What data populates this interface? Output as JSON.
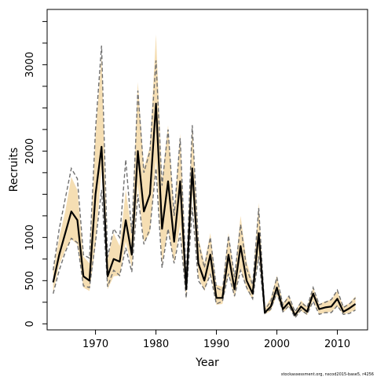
{
  "chart_data": {
    "type": "line",
    "title": "",
    "xlabel": "Year",
    "ylabel": "Recruits",
    "xlim": [
      1962,
      2015
    ],
    "ylim": [
      -70,
      3640
    ],
    "x_ticks": [
      1970,
      1980,
      1990,
      2000,
      2010
    ],
    "x_tick_labels": [
      "1970",
      "1980",
      "1990",
      "2000",
      "2010"
    ],
    "y_ticks": [
      0,
      500,
      1000,
      2000,
      3000
    ],
    "y_tick_labels": [
      "0",
      "500",
      "1000",
      "2000",
      "3000"
    ],
    "y_minor_ticks": [
      250,
      750,
      1250,
      1500,
      1750,
      2250,
      2500,
      2750,
      3250,
      3500
    ],
    "grid": false,
    "legend": "none",
    "footer": "stockassessment.org, nscod2015-base5, r4256",
    "colors": {
      "estimate": "#000000",
      "band": "#f5deb3",
      "bounds": "#707070"
    },
    "x": [
      1963,
      1964,
      1965,
      1966,
      1967,
      1968,
      1969,
      1970,
      1971,
      1972,
      1973,
      1974,
      1975,
      1976,
      1977,
      1978,
      1979,
      1980,
      1981,
      1982,
      1983,
      1984,
      1985,
      1986,
      1987,
      1988,
      1989,
      1990,
      1991,
      1992,
      1993,
      1994,
      1995,
      1996,
      1997,
      1998,
      1999,
      2000,
      2001,
      2002,
      2003,
      2004,
      2005,
      2006,
      2007,
      2008,
      2009,
      2010,
      2011,
      2012,
      2013
    ],
    "series": [
      {
        "values": [
          480,
          800,
          1050,
          1300,
          1200,
          550,
          500,
          1500,
          2050,
          550,
          750,
          720,
          1200,
          800,
          2000,
          1300,
          1500,
          2550,
          1100,
          1650,
          950,
          1650,
          400,
          1800,
          700,
          500,
          800,
          300,
          300,
          800,
          400,
          900,
          500,
          350,
          1050,
          130,
          200,
          420,
          170,
          250,
          100,
          200,
          140,
          350,
          170,
          190,
          200,
          290,
          140,
          180,
          230
        ]
      },
      {
        "values": [
          350,
          680,
          850,
          980,
          920,
          420,
          380,
          900,
          1800,
          400,
          550,
          560,
          950,
          650,
          1600,
          950,
          1050,
          1900,
          700,
          1100,
          700,
          1150,
          280,
          1500,
          550,
          380,
          600,
          220,
          230,
          570,
          300,
          650,
          400,
          280,
          800,
          110,
          150,
          330,
          130,
          190,
          80,
          150,
          100,
          270,
          110,
          130,
          140,
          200,
          110,
          130,
          160
        ]
      },
      {
        "values": [
          620,
          1000,
          1300,
          1700,
          1550,
          780,
          700,
          2200,
          3100,
          750,
          1050,
          900,
          1550,
          1050,
          2800,
          1800,
          2050,
          3350,
          1650,
          2300,
          1300,
          2200,
          600,
          2300,
          1000,
          700,
          1050,
          450,
          430,
          1050,
          550,
          1250,
          720,
          480,
          1400,
          180,
          300,
          560,
          240,
          330,
          140,
          270,
          200,
          420,
          230,
          260,
          280,
          380,
          200,
          240,
          320
        ]
      },
      {
        "values": [
          350,
          620,
          830,
          990,
          940,
          440,
          420,
          950,
          1550,
          430,
          620,
          560,
          880,
          600,
          1500,
          920,
          1100,
          1800,
          650,
          1100,
          700,
          1050,
          300,
          1350,
          500,
          400,
          570,
          230,
          260,
          580,
          320,
          620,
          420,
          290,
          780,
          120,
          170,
          360,
          140,
          210,
          70,
          160,
          110,
          260,
          110,
          130,
          130,
          210,
          110,
          120,
          160
        ]
      },
      {
        "values": [
          620,
          1100,
          1450,
          1800,
          1680,
          800,
          760,
          2250,
          3220,
          770,
          1100,
          1000,
          1900,
          1050,
          2700,
          1750,
          2000,
          3050,
          1600,
          2250,
          1250,
          2150,
          530,
          2300,
          950,
          650,
          1000,
          420,
          380,
          1020,
          540,
          1150,
          640,
          450,
          1340,
          160,
          260,
          540,
          220,
          320,
          140,
          250,
          190,
          420,
          220,
          250,
          280,
          390,
          190,
          230,
          300
        ]
      }
    ]
  }
}
